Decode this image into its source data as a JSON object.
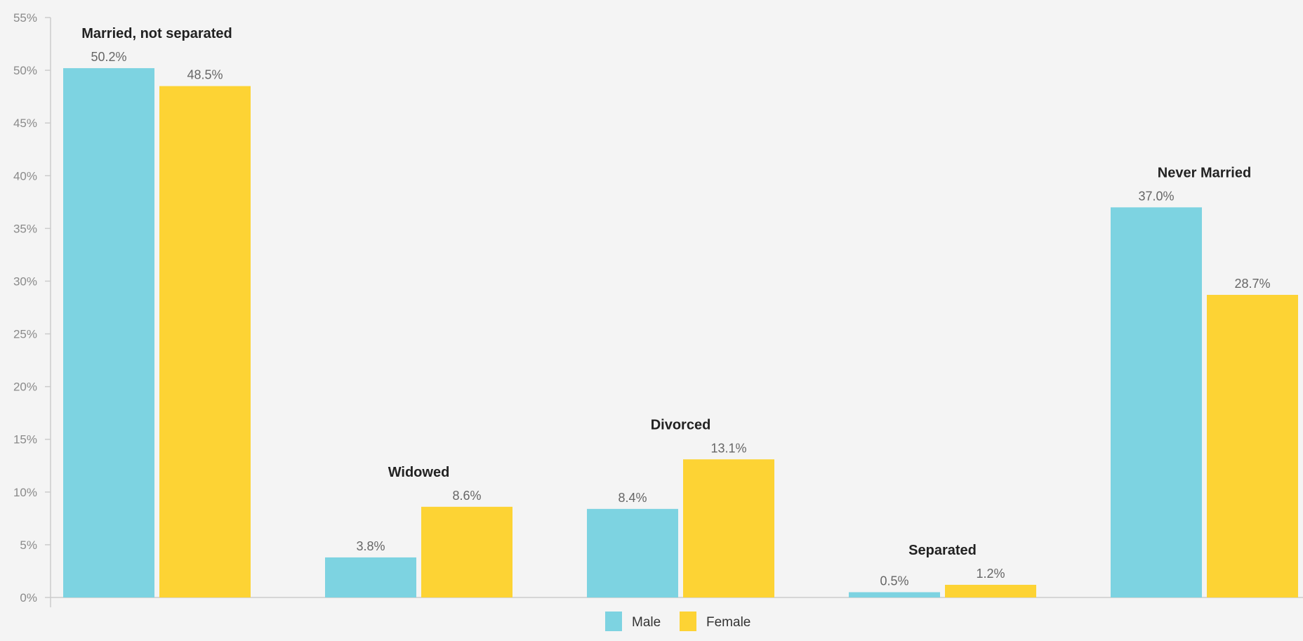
{
  "chart_data": {
    "type": "bar",
    "categories": [
      "Married, not separated",
      "Widowed",
      "Divorced",
      "Separated",
      "Never Married"
    ],
    "series": [
      {
        "name": "Male",
        "values": [
          50.2,
          3.8,
          8.4,
          0.5,
          37.0
        ]
      },
      {
        "name": "Female",
        "values": [
          48.5,
          8.6,
          13.1,
          1.2,
          28.7
        ]
      }
    ],
    "value_labels": [
      [
        "50.2%",
        "3.8%",
        "8.4%",
        "0.5%",
        "37.0%"
      ],
      [
        "48.5%",
        "8.6%",
        "13.1%",
        "1.2%",
        "28.7%"
      ]
    ],
    "ylim": [
      0,
      55
    ],
    "yticks": [
      0,
      5,
      10,
      15,
      20,
      25,
      30,
      35,
      40,
      45,
      50,
      55
    ],
    "ytick_labels": [
      "0%",
      "5%",
      "10%",
      "15%",
      "20%",
      "25%",
      "30%",
      "35%",
      "40%",
      "45%",
      "50%",
      "55%"
    ],
    "grid": false,
    "legend_position": "bottom-center",
    "colors": {
      "Male": "#7dd3e1",
      "Female": "#fdd334"
    },
    "title": "",
    "xlabel": "",
    "ylabel": ""
  }
}
